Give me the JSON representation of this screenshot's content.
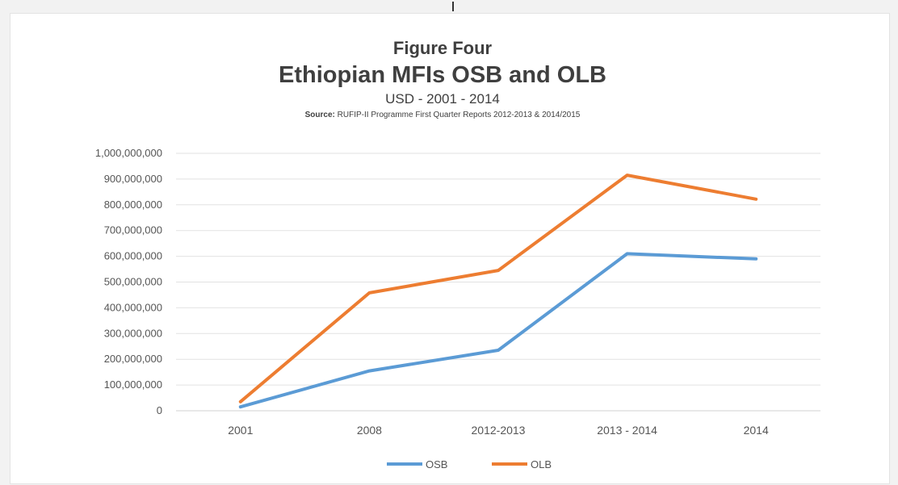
{
  "chart_data": {
    "type": "line",
    "figure_label": "Figure Four",
    "title": "Ethiopian MFIs OSB and OLB",
    "subtitle": "USD - 2001 - 2014",
    "source_label": "Source:",
    "source_text": "RUFIP-II Programme First Quarter Reports 2012-2013 & 2014/2015",
    "categories": [
      "2001",
      "2008",
      "2012-2013",
      "2013 - 2014",
      "2014"
    ],
    "series": [
      {
        "name": "OSB",
        "color": "#5b9bd5",
        "values": [
          15000000,
          155000000,
          235000000,
          610000000,
          590000000
        ]
      },
      {
        "name": "OLB",
        "color": "#ed7d31",
        "values": [
          35000000,
          458000000,
          545000000,
          915000000,
          822000000
        ]
      }
    ],
    "y_ticks": [
      "0",
      "100,000,000",
      "200,000,000",
      "300,000,000",
      "400,000,000",
      "500,000,000",
      "600,000,000",
      "700,000,000",
      "800,000,000",
      "900,000,000",
      "1,000,000,000"
    ],
    "ylim": [
      0,
      1000000000
    ],
    "grid": true,
    "legend_position": "bottom"
  }
}
